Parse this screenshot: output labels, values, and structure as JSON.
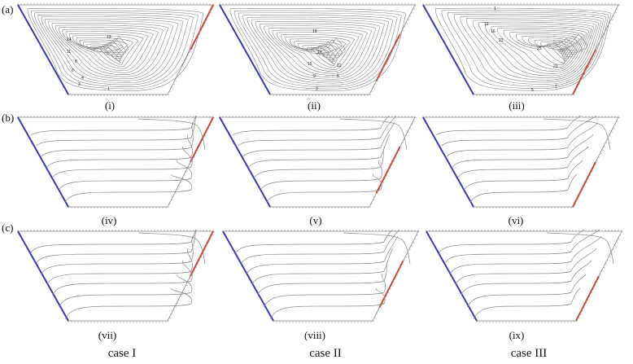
{
  "rows": [
    {
      "label": "(a)",
      "panels": [
        {
          "label": "(i)",
          "values": [
            "14",
            "13",
            "11",
            "8",
            "6",
            "4",
            "3",
            "1"
          ]
        },
        {
          "label": "(ii)",
          "values": [
            "19",
            "17",
            "15",
            "12",
            "9",
            "6",
            "2"
          ]
        },
        {
          "label": "(iii)",
          "values": [
            "1",
            "12",
            "16",
            "23",
            "25",
            "21",
            "7",
            "5"
          ]
        }
      ]
    },
    {
      "label": "(b)",
      "panels": [
        {
          "label": "(iv)",
          "values": []
        },
        {
          "label": "(v)",
          "values": []
        },
        {
          "label": "(vi)",
          "values": []
        }
      ]
    },
    {
      "label": "(c)",
      "panels": [
        {
          "label": "(vii)",
          "values": []
        },
        {
          "label": "(viii)",
          "values": []
        },
        {
          "label": "(ix)",
          "values": []
        }
      ]
    }
  ],
  "cases": [
    "case I",
    "case II",
    "case III"
  ],
  "colors": {
    "hot_wall": "#c84b3c",
    "cold_wall": "#3b3bb0",
    "contour": "#8a8a8a",
    "frame": "#888888"
  }
}
